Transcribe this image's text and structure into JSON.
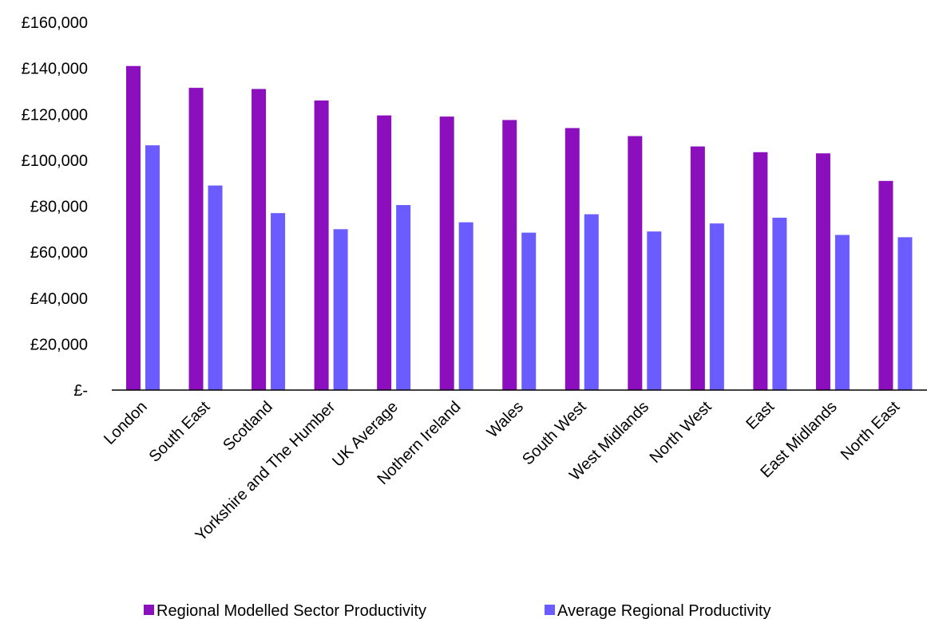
{
  "chart_data": {
    "type": "bar",
    "title": "",
    "xlabel": "",
    "ylabel": "",
    "ylim": [
      0,
      160000
    ],
    "yticks": [
      0,
      20000,
      40000,
      60000,
      80000,
      100000,
      120000,
      140000,
      160000
    ],
    "ytick_labels": [
      "£-",
      "£20,000",
      "£40,000",
      "£60,000",
      "£80,000",
      "£100,000",
      "£120,000",
      "£140,000",
      "£160,000"
    ],
    "grid": false,
    "legend_position": "bottom",
    "categories": [
      "London",
      "South East",
      "Scotland",
      "Yorkshire and The Humber",
      "UK Average",
      "Nothern Ireland",
      "Wales",
      "South West",
      "West Midlands",
      "North West",
      "East",
      "East Midlands",
      "North East"
    ],
    "series": [
      {
        "name": "Regional Modelled Sector Productivity",
        "color": "#8b0fbd",
        "values": [
          141000,
          131500,
          131000,
          126000,
          119500,
          119000,
          117500,
          114000,
          110500,
          106000,
          103500,
          103000,
          91000
        ]
      },
      {
        "name": "Average Regional Productivity",
        "color": "#6b5cff",
        "values": [
          106500,
          89000,
          77000,
          70000,
          80500,
          73000,
          68500,
          76500,
          69000,
          72500,
          75000,
          67500,
          66500
        ]
      }
    ]
  }
}
